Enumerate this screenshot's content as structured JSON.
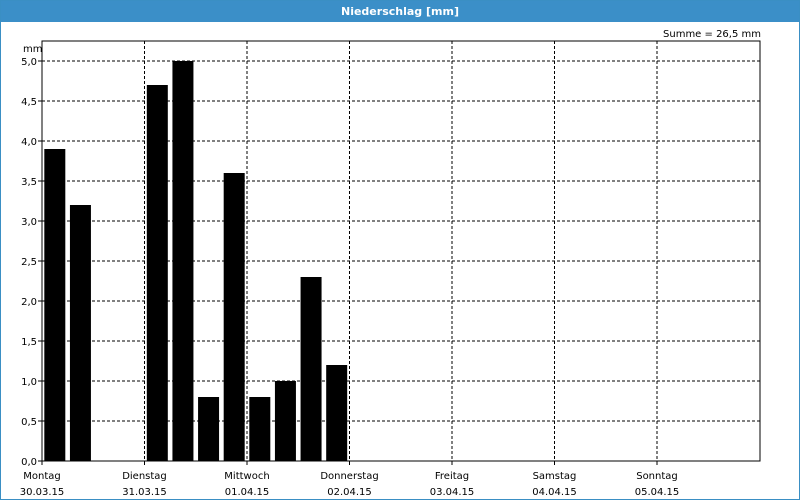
{
  "title": "Niederschlag [mm]",
  "summary": "Summe = 26,5 mm",
  "colors": {
    "titlebar": "#3b8fc8",
    "bar": "#000000",
    "grid": "#000000"
  },
  "chart_data": {
    "type": "bar",
    "title": "Niederschlag [mm]",
    "ylabel": "mm",
    "xlabel": "",
    "ylim": [
      0,
      5.25
    ],
    "grid": true,
    "yticks": [
      "0,0",
      "0,5",
      "1,0",
      "1,5",
      "2,0",
      "2,5",
      "3,0",
      "3,5",
      "4,0",
      "4,5",
      "5,0"
    ],
    "ytick_values": [
      0,
      0.5,
      1.0,
      1.5,
      2.0,
      2.5,
      3.0,
      3.5,
      4.0,
      4.5,
      5.0
    ],
    "days": [
      {
        "name": "Montag",
        "date": "30.03.15"
      },
      {
        "name": "Dienstag",
        "date": "31.03.15"
      },
      {
        "name": "Mittwoch",
        "date": "01.04.15"
      },
      {
        "name": "Donnerstag",
        "date": "02.04.15"
      },
      {
        "name": "Freitag",
        "date": "03.04.15"
      },
      {
        "name": "Samstag",
        "date": "04.04.15"
      },
      {
        "name": "Sonntag",
        "date": "05.04.15"
      }
    ],
    "x_hours_per_day": 24,
    "bars": [
      {
        "hour": 3,
        "value": 3.9
      },
      {
        "hour": 9,
        "value": 3.2
      },
      {
        "hour": 27,
        "value": 4.7
      },
      {
        "hour": 33,
        "value": 5.0
      },
      {
        "hour": 39,
        "value": 0.8
      },
      {
        "hour": 45,
        "value": 3.6
      },
      {
        "hour": 51,
        "value": 0.8
      },
      {
        "hour": 57,
        "value": 1.0
      },
      {
        "hour": 63,
        "value": 2.3
      },
      {
        "hour": 69,
        "value": 1.2
      }
    ]
  }
}
